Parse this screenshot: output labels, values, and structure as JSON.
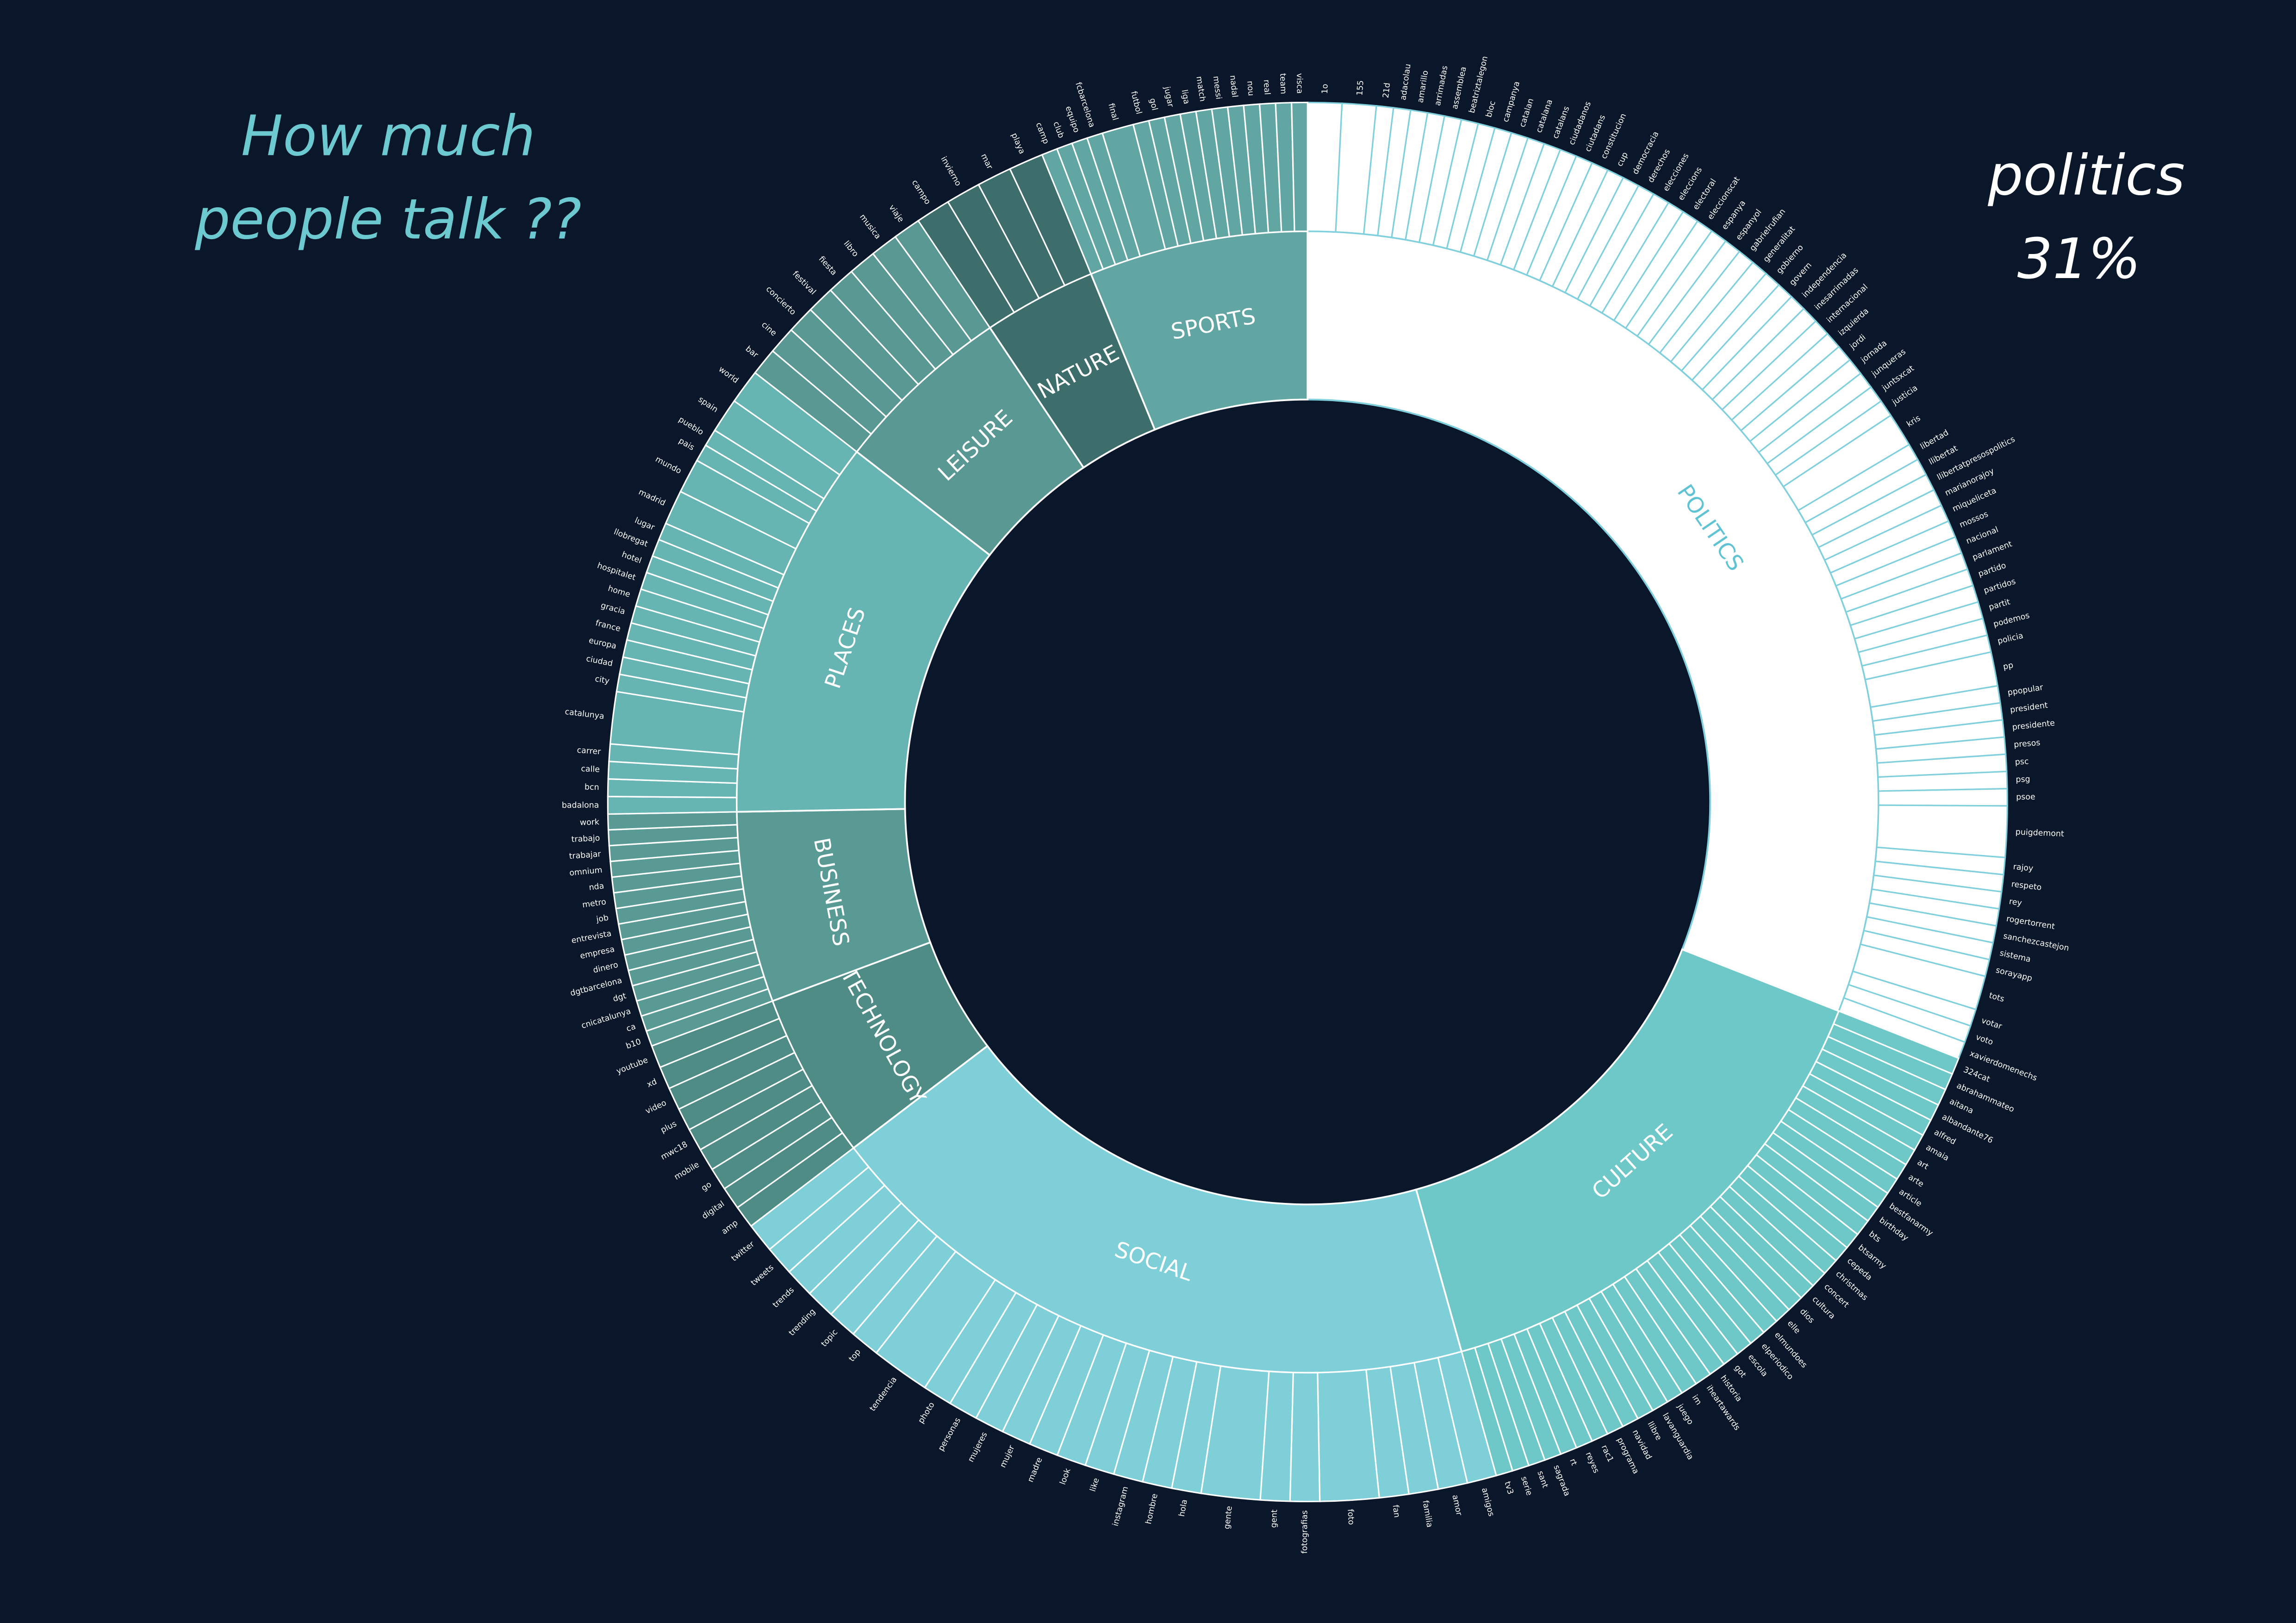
{
  "chart_data": {
    "type": "sunburst",
    "title_lines": [
      "How much",
      "people talk ??"
    ],
    "annotation_lines": [
      "politics",
      "31%"
    ],
    "categories": [
      {
        "name": "POLITICS",
        "value": 31,
        "color": "#ffffff",
        "stroke": "#7fd0dc",
        "label_color": "#5fc3d4",
        "children": [
          {
            "name": "1o",
            "value": 2
          },
          {
            "name": "155",
            "value": 2
          },
          {
            "name": "21d",
            "value": 1
          },
          {
            "name": "adacolau",
            "value": 1
          },
          {
            "name": "amarillo",
            "value": 1
          },
          {
            "name": "arrimadas",
            "value": 1
          },
          {
            "name": "assemblea",
            "value": 1
          },
          {
            "name": "beatriztalegon",
            "value": 1
          },
          {
            "name": "bloc",
            "value": 1
          },
          {
            "name": "campanya",
            "value": 1
          },
          {
            "name": "catalan",
            "value": 1
          },
          {
            "name": "catalana",
            "value": 1
          },
          {
            "name": "catalans",
            "value": 1
          },
          {
            "name": "ciudadanos",
            "value": 1
          },
          {
            "name": "ciutadans",
            "value": 1
          },
          {
            "name": "constitucion",
            "value": 1
          },
          {
            "name": "cup",
            "value": 1
          },
          {
            "name": "democracia",
            "value": 1
          },
          {
            "name": "derechos",
            "value": 1
          },
          {
            "name": "elecciones",
            "value": 1
          },
          {
            "name": "eleccions",
            "value": 1
          },
          {
            "name": "electoral",
            "value": 1
          },
          {
            "name": "eleccionscat",
            "value": 1
          },
          {
            "name": "espanya",
            "value": 1
          },
          {
            "name": "espanyol",
            "value": 1
          },
          {
            "name": "gabrielrufian",
            "value": 1
          },
          {
            "name": "generalitat",
            "value": 1
          },
          {
            "name": "gobierno",
            "value": 1
          },
          {
            "name": "govern",
            "value": 1
          },
          {
            "name": "independencia",
            "value": 1
          },
          {
            "name": "inesarrimadas",
            "value": 1
          },
          {
            "name": "internacional",
            "value": 1
          },
          {
            "name": "izquierda",
            "value": 1
          },
          {
            "name": "jordi",
            "value": 1
          },
          {
            "name": "jornada",
            "value": 1
          },
          {
            "name": "junqueras",
            "value": 1
          },
          {
            "name": "juntsxcat",
            "value": 1
          },
          {
            "name": "justicia",
            "value": 1
          },
          {
            "name": "kris",
            "value": 2
          },
          {
            "name": "libertad",
            "value": 1
          },
          {
            "name": "llibertat",
            "value": 1
          },
          {
            "name": "llibertatpresospolitics",
            "value": 1
          },
          {
            "name": "marianorajoy",
            "value": 1
          },
          {
            "name": "miqueliceta",
            "value": 1
          },
          {
            "name": "mossos",
            "value": 1
          },
          {
            "name": "nacional",
            "value": 1
          },
          {
            "name": "parlament",
            "value": 1
          },
          {
            "name": "partido",
            "value": 1
          },
          {
            "name": "partidos",
            "value": 1
          },
          {
            "name": "partit",
            "value": 1
          },
          {
            "name": "podemos",
            "value": 1
          },
          {
            "name": "policia",
            "value": 1
          },
          {
            "name": "pp",
            "value": 2
          },
          {
            "name": "ppopular",
            "value": 1
          },
          {
            "name": "president",
            "value": 1
          },
          {
            "name": "presidente",
            "value": 1
          },
          {
            "name": "presos",
            "value": 1
          },
          {
            "name": "psc",
            "value": 1
          },
          {
            "name": "psg",
            "value": 1
          },
          {
            "name": "psoe",
            "value": 1
          },
          {
            "name": "puigdemont",
            "value": 3
          },
          {
            "name": "rajoy",
            "value": 1
          },
          {
            "name": "respeto",
            "value": 1
          },
          {
            "name": "rey",
            "value": 1
          },
          {
            "name": "rogertorrent",
            "value": 1
          },
          {
            "name": "sanchezcastejon",
            "value": 1
          },
          {
            "name": "sistema",
            "value": 1
          },
          {
            "name": "sorayapp",
            "value": 1
          },
          {
            "name": "tots",
            "value": 2
          },
          {
            "name": "votar",
            "value": 1
          },
          {
            "name": "voto",
            "value": 1
          },
          {
            "name": "xavierdomenechs",
            "value": 1
          }
        ]
      },
      {
        "name": "CULTURE",
        "value": 14.7,
        "color": "#6ec8c8",
        "stroke": "#ffffff",
        "label_color": "#ffffff",
        "children": [
          {
            "name": "324cat",
            "value": 1
          },
          {
            "name": "abrahammateo",
            "value": 1
          },
          {
            "name": "aitana",
            "value": 1
          },
          {
            "name": "albandante76",
            "value": 1
          },
          {
            "name": "alfred",
            "value": 1
          },
          {
            "name": "amaia",
            "value": 1
          },
          {
            "name": "art",
            "value": 1
          },
          {
            "name": "arte",
            "value": 1
          },
          {
            "name": "article",
            "value": 1
          },
          {
            "name": "bestfanarmy",
            "value": 1
          },
          {
            "name": "birthday",
            "value": 1
          },
          {
            "name": "bts",
            "value": 1
          },
          {
            "name": "btsarmy",
            "value": 1
          },
          {
            "name": "cepeda",
            "value": 1
          },
          {
            "name": "christmas",
            "value": 1
          },
          {
            "name": "concert",
            "value": 1
          },
          {
            "name": "cultura",
            "value": 1
          },
          {
            "name": "dios",
            "value": 1
          },
          {
            "name": "elle",
            "value": 1
          },
          {
            "name": "elmundoes",
            "value": 1
          },
          {
            "name": "elperiodico",
            "value": 1
          },
          {
            "name": "escola",
            "value": 1
          },
          {
            "name": "got",
            "value": 1
          },
          {
            "name": "historia",
            "value": 1
          },
          {
            "name": "iheartawards",
            "value": 1
          },
          {
            "name": "im",
            "value": 1
          },
          {
            "name": "juego",
            "value": 1
          },
          {
            "name": "lavanguardia",
            "value": 1
          },
          {
            "name": "llibre",
            "value": 1
          },
          {
            "name": "navidad",
            "value": 1
          },
          {
            "name": "programa",
            "value": 1
          },
          {
            "name": "rac1",
            "value": 1
          },
          {
            "name": "reyes",
            "value": 1
          },
          {
            "name": "rt",
            "value": 1
          },
          {
            "name": "sagrada",
            "value": 1
          },
          {
            "name": "sant",
            "value": 1
          },
          {
            "name": "serie",
            "value": 1
          },
          {
            "name": "tv3",
            "value": 1
          }
        ]
      },
      {
        "name": "SOCIAL",
        "value": 19,
        "color": "#7ecfd8",
        "stroke": "#ffffff",
        "label_color": "#ffffff",
        "children": [
          {
            "name": "amigos",
            "value": 1
          },
          {
            "name": "amor",
            "value": 1
          },
          {
            "name": "familia",
            "value": 1
          },
          {
            "name": "fan",
            "value": 1
          },
          {
            "name": "foto",
            "value": 2
          },
          {
            "name": "fotografias",
            "value": 1
          },
          {
            "name": "gent",
            "value": 1
          },
          {
            "name": "gente",
            "value": 2
          },
          {
            "name": "hola",
            "value": 1
          },
          {
            "name": "hombre",
            "value": 1
          },
          {
            "name": "instagram",
            "value": 1
          },
          {
            "name": "like",
            "value": 1
          },
          {
            "name": "look",
            "value": 1
          },
          {
            "name": "madre",
            "value": 1
          },
          {
            "name": "mujer",
            "value": 1
          },
          {
            "name": "mujeres",
            "value": 1
          },
          {
            "name": "personas",
            "value": 1
          },
          {
            "name": "photo",
            "value": 1
          },
          {
            "name": "tendencia",
            "value": 2
          },
          {
            "name": "top",
            "value": 1
          },
          {
            "name": "topic",
            "value": 1
          },
          {
            "name": "trending",
            "value": 1
          },
          {
            "name": "trends",
            "value": 1
          },
          {
            "name": "tweets",
            "value": 1
          },
          {
            "name": "twitter",
            "value": 1
          }
        ]
      },
      {
        "name": "TECHNOLOGY",
        "value": 4.7,
        "color": "#4e8c85",
        "stroke": "#ffffff",
        "label_color": "#ffffff",
        "children": [
          {
            "name": "amp",
            "value": 1
          },
          {
            "name": "digital",
            "value": 1
          },
          {
            "name": "go",
            "value": 1
          },
          {
            "name": "mobile",
            "value": 1
          },
          {
            "name": "mwc18",
            "value": 1
          },
          {
            "name": "plus",
            "value": 1
          },
          {
            "name": "video",
            "value": 1
          },
          {
            "name": "xd",
            "value": 1
          },
          {
            "name": "youtube",
            "value": 1
          }
        ]
      },
      {
        "name": "BUSINESS",
        "value": 5.4,
        "color": "#5a9a94",
        "stroke": "#ffffff",
        "label_color": "#ffffff",
        "children": [
          {
            "name": "b10",
            "value": 1
          },
          {
            "name": "ca",
            "value": 1
          },
          {
            "name": "cnicatalunya",
            "value": 1
          },
          {
            "name": "dgt",
            "value": 1
          },
          {
            "name": "dgtbarcelona",
            "value": 1
          },
          {
            "name": "dinero",
            "value": 1
          },
          {
            "name": "empresa",
            "value": 1
          },
          {
            "name": "entrevista",
            "value": 1
          },
          {
            "name": "job",
            "value": 1
          },
          {
            "name": "metro",
            "value": 1
          },
          {
            "name": "nda",
            "value": 1
          },
          {
            "name": "omnium",
            "value": 1
          },
          {
            "name": "trabajar",
            "value": 1
          },
          {
            "name": "trabajo",
            "value": 1
          },
          {
            "name": "work",
            "value": 1
          }
        ]
      },
      {
        "name": "PLACES",
        "value": 10.8,
        "color": "#66b5b3",
        "stroke": "#ffffff",
        "label_color": "#ffffff",
        "children": [
          {
            "name": "badalona",
            "value": 1
          },
          {
            "name": "bcn",
            "value": 1
          },
          {
            "name": "calle",
            "value": 1
          },
          {
            "name": "carrer",
            "value": 1
          },
          {
            "name": "catalunya",
            "value": 3
          },
          {
            "name": "city",
            "value": 1
          },
          {
            "name": "ciudad",
            "value": 1
          },
          {
            "name": "europa",
            "value": 1
          },
          {
            "name": "france",
            "value": 1
          },
          {
            "name": "gracia",
            "value": 1
          },
          {
            "name": "home",
            "value": 1
          },
          {
            "name": "hospitalet",
            "value": 1
          },
          {
            "name": "hotel",
            "value": 1
          },
          {
            "name": "llobregat",
            "value": 1
          },
          {
            "name": "lugar",
            "value": 1
          },
          {
            "name": "madrid",
            "value": 2
          },
          {
            "name": "mundo",
            "value": 2
          },
          {
            "name": "pais",
            "value": 1
          },
          {
            "name": "pueblo",
            "value": 1
          },
          {
            "name": "spain",
            "value": 2
          },
          {
            "name": "world",
            "value": 2
          }
        ]
      },
      {
        "name": "LEISURE",
        "value": 5.1,
        "color": "#5a9894",
        "stroke": "#ffffff",
        "label_color": "#ffffff",
        "children": [
          {
            "name": "bar",
            "value": 1
          },
          {
            "name": "cine",
            "value": 1
          },
          {
            "name": "concierto",
            "value": 1
          },
          {
            "name": "festival",
            "value": 1
          },
          {
            "name": "fiesta",
            "value": 1
          },
          {
            "name": "libro",
            "value": 1
          },
          {
            "name": "musica",
            "value": 1
          },
          {
            "name": "viaje",
            "value": 1
          }
        ]
      },
      {
        "name": "NATURE",
        "value": 3.2,
        "color": "#3d6e6b",
        "stroke": "#ffffff",
        "label_color": "#ffffff",
        "children": [
          {
            "name": "campo",
            "value": 1
          },
          {
            "name": "invierno",
            "value": 1
          },
          {
            "name": "mar",
            "value": 1
          },
          {
            "name": "playa",
            "value": 1
          }
        ]
      },
      {
        "name": "SPORTS",
        "value": 6.2,
        "color": "#62a6a4",
        "stroke": "#ffffff",
        "label_color": "#ffffff",
        "children": [
          {
            "name": "camp",
            "value": 1
          },
          {
            "name": "club",
            "value": 1
          },
          {
            "name": "equipo",
            "value": 1
          },
          {
            "name": "fcbarcelona",
            "value": 1
          },
          {
            "name": "final",
            "value": 2
          },
          {
            "name": "futbol",
            "value": 1
          },
          {
            "name": "gol",
            "value": 1
          },
          {
            "name": "jugar",
            "value": 1
          },
          {
            "name": "liga",
            "value": 1
          },
          {
            "name": "match",
            "value": 1
          },
          {
            "name": "messi",
            "value": 1
          },
          {
            "name": "nadal",
            "value": 1
          },
          {
            "name": "nou",
            "value": 1
          },
          {
            "name": "real",
            "value": 1
          },
          {
            "name": "team",
            "value": 1
          },
          {
            "name": "visca",
            "value": 1
          }
        ]
      }
    ]
  }
}
